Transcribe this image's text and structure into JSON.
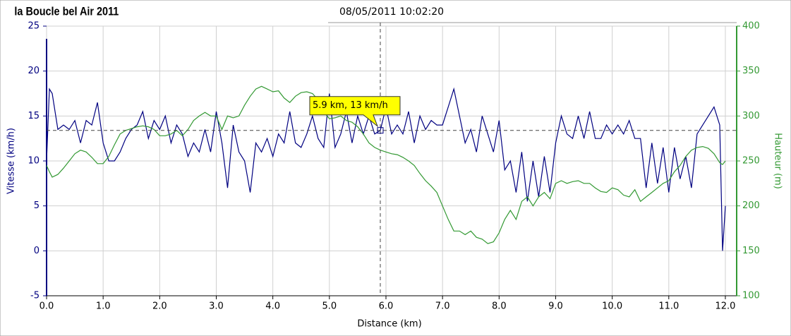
{
  "chart_data": {
    "type": "line",
    "title": "la Boucle bel Air 2011",
    "subtitle": "08/05/2011 10:02:20",
    "x_label": "Distance (km)",
    "y_label": "Vitesse (km/h)",
    "y2_label": "Hauteur (m)",
    "annotation": "5.9 km, 13 km/h",
    "crosshair": {
      "x": 5.9,
      "y": 13.4
    },
    "x": [
      0,
      0.05,
      0.1,
      0.2,
      0.3,
      0.4,
      0.5,
      0.6,
      0.7,
      0.8,
      0.9,
      1.0,
      1.1,
      1.2,
      1.3,
      1.4,
      1.5,
      1.6,
      1.7,
      1.8,
      1.9,
      2.0,
      2.1,
      2.2,
      2.3,
      2.4,
      2.5,
      2.6,
      2.7,
      2.8,
      2.9,
      3.0,
      3.1,
      3.2,
      3.3,
      3.4,
      3.5,
      3.6,
      3.7,
      3.8,
      3.9,
      4.0,
      4.1,
      4.2,
      4.3,
      4.4,
      4.5,
      4.6,
      4.7,
      4.8,
      4.9,
      5.0,
      5.1,
      5.2,
      5.3,
      5.4,
      5.5,
      5.6,
      5.7,
      5.8,
      5.9,
      6.0,
      6.1,
      6.2,
      6.3,
      6.4,
      6.5,
      6.6,
      6.7,
      6.8,
      6.9,
      7.0,
      7.1,
      7.2,
      7.3,
      7.4,
      7.5,
      7.6,
      7.7,
      7.8,
      7.9,
      8.0,
      8.1,
      8.2,
      8.3,
      8.4,
      8.5,
      8.6,
      8.7,
      8.8,
      8.9,
      9.0,
      9.1,
      9.2,
      9.3,
      9.4,
      9.5,
      9.6,
      9.7,
      9.8,
      9.9,
      10.0,
      10.1,
      10.2,
      10.3,
      10.4,
      10.5,
      10.6,
      10.7,
      10.8,
      10.9,
      11.0,
      11.1,
      11.2,
      11.3,
      11.4,
      11.5,
      11.6,
      11.7,
      11.8,
      11.9,
      11.95,
      12.0
    ],
    "series": [
      {
        "name": "Vitesse (km/h)",
        "color": "#000080",
        "axis": "y",
        "values": [
          10,
          18,
          17.5,
          13.5,
          14,
          13.5,
          14.5,
          12,
          14.5,
          14,
          16.5,
          12,
          10,
          10,
          11,
          12.5,
          13.5,
          14,
          15.5,
          12.5,
          14.5,
          13.5,
          15,
          12,
          14,
          13,
          10.5,
          12,
          11,
          13.5,
          11,
          15.5,
          12,
          7,
          14,
          11,
          10,
          6.5,
          12,
          11,
          12.5,
          10.5,
          13,
          12,
          15.5,
          12,
          11.5,
          13,
          15,
          12.5,
          11.5,
          17.5,
          11.5,
          13,
          15.5,
          12,
          15,
          13,
          15,
          13,
          13.4,
          16,
          13,
          14,
          13,
          15.5,
          12,
          15,
          13.5,
          14.5,
          14,
          14,
          16,
          18,
          15,
          12,
          13.5,
          11,
          15,
          13,
          11,
          14.5,
          9,
          10,
          6.5,
          11,
          5.5,
          10,
          6,
          10.5,
          6.5,
          12,
          15,
          13,
          12.5,
          15,
          12.5,
          15.5,
          12.5,
          12.5,
          14,
          13,
          14,
          13,
          14.5,
          12.5,
          12.5,
          7,
          12,
          7.5,
          11.5,
          6.5,
          11.5,
          8,
          10.5,
          7,
          13,
          14,
          15,
          16,
          14,
          0,
          5
        ]
      },
      {
        "name": "Hauteur (m)",
        "color": "#339933",
        "axis": "y2",
        "values": [
          245,
          238,
          232,
          235,
          242,
          250,
          258,
          262,
          260,
          254,
          247,
          247,
          255,
          268,
          280,
          284,
          286,
          288,
          289,
          288,
          285,
          278,
          278,
          280,
          284,
          278,
          285,
          295,
          300,
          304,
          300,
          300,
          285,
          300,
          298,
          300,
          312,
          322,
          330,
          333,
          330,
          327,
          328,
          320,
          315,
          322,
          326,
          327,
          325,
          318,
          305,
          297,
          298,
          300,
          295,
          293,
          288,
          280,
          270,
          265,
          262,
          260,
          258,
          257,
          254,
          250,
          245,
          236,
          228,
          222,
          215,
          200,
          185,
          172,
          172,
          168,
          172,
          165,
          163,
          158,
          160,
          170,
          185,
          195,
          185,
          205,
          210,
          200,
          210,
          215,
          208,
          225,
          228,
          225,
          227,
          228,
          225,
          225,
          220,
          216,
          215,
          220,
          218,
          212,
          210,
          218,
          205,
          210,
          215,
          220,
          225,
          228,
          238,
          245,
          255,
          262,
          265,
          266,
          264,
          258,
          248,
          246,
          250
        ]
      }
    ],
    "xlim": [
      0,
      12.2
    ],
    "xticks": [
      {
        "value": 0,
        "label": "0.0"
      },
      {
        "value": 1,
        "label": "1.0"
      },
      {
        "value": 2,
        "label": "2.0"
      },
      {
        "value": 3,
        "label": "3.0"
      },
      {
        "value": 4,
        "label": "4.0"
      },
      {
        "value": 5,
        "label": "5.0"
      },
      {
        "value": 6,
        "label": "6.0"
      },
      {
        "value": 7,
        "label": "7.0"
      },
      {
        "value": 8,
        "label": "8.0"
      },
      {
        "value": 9,
        "label": "9.0"
      },
      {
        "value": 10,
        "label": "10.0"
      },
      {
        "value": 11,
        "label": "11.0"
      },
      {
        "value": 12,
        "label": "12.0"
      }
    ],
    "ylim": [
      -5,
      25
    ],
    "yticks": [
      -5,
      0,
      5,
      10,
      15,
      20,
      25
    ],
    "y2lim": [
      100,
      400
    ],
    "y2ticks": [
      100,
      150,
      200,
      250,
      300,
      350,
      400
    ],
    "grid": true
  }
}
